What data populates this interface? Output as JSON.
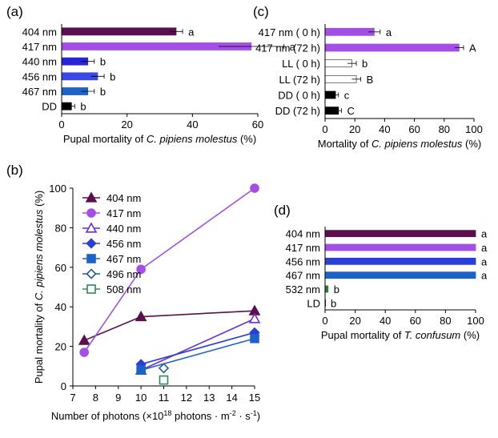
{
  "panels": {
    "a": {
      "label": "(a)"
    },
    "b": {
      "label": "(b)"
    },
    "c": {
      "label": "(c)"
    },
    "d": {
      "label": "(d)"
    }
  },
  "chart_data": [
    {
      "id": "a",
      "type": "bar",
      "orientation": "horizontal",
      "categories": [
        "404 nm",
        "417 nm",
        "440 nm",
        "456 nm",
        "467 nm",
        "DD"
      ],
      "values": [
        35,
        58,
        8,
        11,
        8,
        3
      ],
      "errors": [
        2,
        10,
        2,
        2,
        2,
        1
      ],
      "letters": [
        "a",
        "a",
        "b",
        "b",
        "b",
        "b"
      ],
      "colors": [
        "#5b0f4e",
        "#a34ee6",
        "#2a24d6",
        "#3a49e3",
        "#1c63c8",
        "#000000"
      ],
      "xlim": [
        0,
        60
      ],
      "xticks": [
        0,
        20,
        40,
        60
      ],
      "xlabel_parts": [
        "Pupal mortality of ",
        "C. pipiens molestus",
        " (%)"
      ],
      "grid": false
    },
    {
      "id": "c",
      "type": "bar",
      "orientation": "horizontal",
      "categories": [
        "417 nm (  0 h)",
        "417 nm (72 h)",
        "LL (  0 h)",
        "LL (72 h)",
        "DD (  0 h)",
        "DD (72 h)"
      ],
      "values": [
        33,
        90,
        18,
        21,
        7,
        9
      ],
      "errors": [
        4,
        3,
        3,
        3,
        2,
        2
      ],
      "letters": [
        "a",
        "A",
        "b",
        "B",
        "c",
        "C"
      ],
      "colors": [
        "#a34ee6",
        "#a34ee6",
        "#ffffff",
        "#ffffff",
        "#000000",
        "#000000"
      ],
      "xlim": [
        0,
        100
      ],
      "xticks": [
        0,
        20,
        40,
        60,
        80,
        100
      ],
      "xlabel_parts": [
        "Mortality of ",
        "C. pipiens molestus",
        " (%)"
      ],
      "grid": false
    },
    {
      "id": "b",
      "type": "line",
      "xlim": [
        7,
        15
      ],
      "ylim": [
        0,
        100
      ],
      "xticks": [
        7,
        8,
        9,
        10,
        11,
        12,
        13,
        14,
        15
      ],
      "yticks": [
        0,
        20,
        40,
        60,
        80,
        100
      ],
      "xlabel_parts": [
        "Number of photons (×10",
        "18",
        " photons · m",
        "-2",
        " · s",
        "-1",
        ")"
      ],
      "ylabel_parts": [
        "Pupal mortality of ",
        "C. pipiens molestus",
        " (%)"
      ],
      "legend_position": "top-left",
      "series": [
        {
          "name": "404 nm",
          "color": "#5b0f4e",
          "marker": "triangle",
          "filled": true,
          "x": [
            7.5,
            10,
            15
          ],
          "y": [
            23,
            35,
            38
          ]
        },
        {
          "name": "417 nm",
          "color": "#a34ee6",
          "marker": "circle",
          "filled": true,
          "x": [
            7.5,
            10,
            15
          ],
          "y": [
            17,
            59,
            100
          ]
        },
        {
          "name": "440 nm",
          "color": "#6a2fd8",
          "marker": "triangle",
          "filled": false,
          "x": [
            10,
            15
          ],
          "y": [
            8,
            34
          ]
        },
        {
          "name": "456 nm",
          "color": "#2a3fd6",
          "marker": "diamond",
          "filled": true,
          "x": [
            10,
            15
          ],
          "y": [
            11,
            27
          ]
        },
        {
          "name": "467 nm",
          "color": "#1c63c8",
          "marker": "square",
          "filled": true,
          "x": [
            10,
            15
          ],
          "y": [
            8,
            24
          ]
        },
        {
          "name": "496 nm",
          "color": "#1f5c9a",
          "marker": "diamond",
          "filled": false,
          "x": [
            11
          ],
          "y": [
            9
          ]
        },
        {
          "name": "508 nm",
          "color": "#2e8b57",
          "marker": "square",
          "filled": false,
          "x": [
            11
          ],
          "y": [
            3
          ]
        }
      ],
      "grid": false
    },
    {
      "id": "d",
      "type": "bar",
      "orientation": "horizontal",
      "categories": [
        "404 nm",
        "417 nm",
        "456 nm",
        "467 nm",
        "532 nm",
        "LD"
      ],
      "values": [
        100,
        100,
        100,
        100,
        2,
        0
      ],
      "letters": [
        "a",
        "a",
        "a",
        "a",
        "b",
        "b"
      ],
      "colors": [
        "#5b0f4e",
        "#a34ee6",
        "#2a3fd6",
        "#1c63c8",
        "#2e7d32",
        "#000000"
      ],
      "xlim": [
        0,
        100
      ],
      "xticks": [
        0,
        20,
        40,
        60,
        80,
        100
      ],
      "xlabel_parts": [
        "Pupal mortality of ",
        "T. confusum",
        " (%)"
      ],
      "grid": false
    }
  ]
}
